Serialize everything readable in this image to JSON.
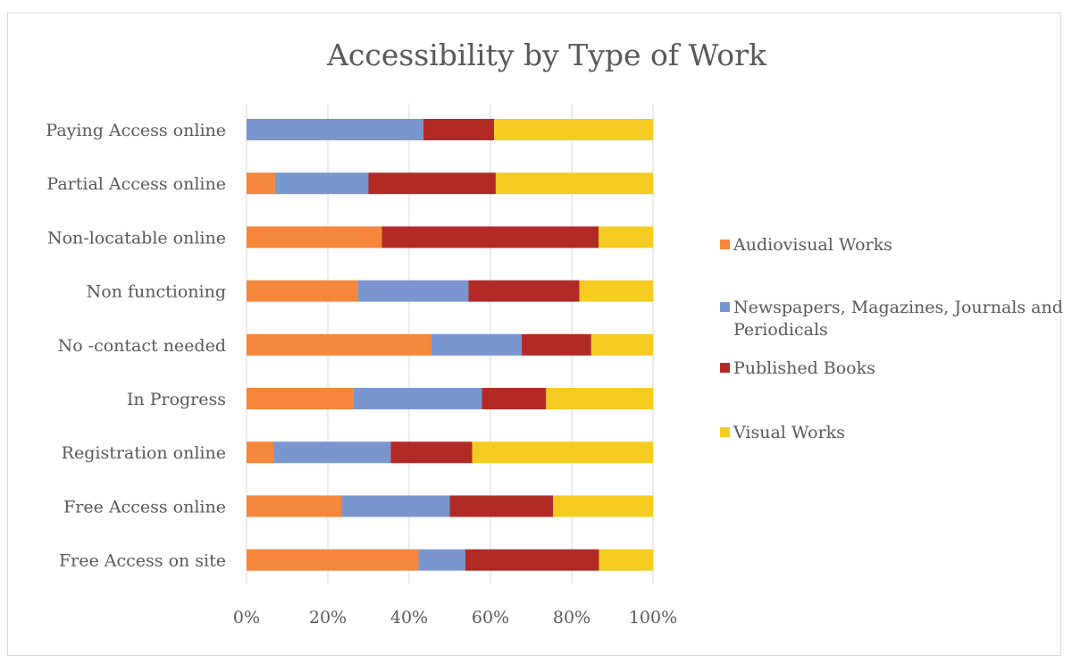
{
  "chart_data": {
    "type": "bar",
    "orientation": "horizontal",
    "stacked": "percent",
    "title": "Accessibility by Type of Work",
    "categories": [
      "Paying Access online",
      "Partial Access online",
      "Non-locatable online",
      "Non functioning",
      "No -contact needed",
      "In Progress",
      "Registration online",
      "Free Access online",
      "Free Access on site"
    ],
    "series": [
      {
        "name": "Audiovisual Works",
        "color": "#f4873b",
        "values": [
          0,
          7,
          33.3,
          27.3,
          45.5,
          26.3,
          6.7,
          23.3,
          42.3
        ]
      },
      {
        "name": "Newspapers, Magazines, Journals and Periodicals",
        "color": "#7a96cf",
        "values": [
          43.5,
          23,
          0,
          27.3,
          22.2,
          31.6,
          28.8,
          26.7,
          11.5
        ]
      },
      {
        "name": "Published Books",
        "color": "#b22a26",
        "values": [
          17.4,
          31.3,
          53.3,
          27.3,
          17.1,
          15.8,
          20,
          25.4,
          32.9
        ]
      },
      {
        "name": "Visual Works",
        "color": "#f5cb22",
        "values": [
          39.1,
          38.7,
          13.4,
          18.1,
          15.2,
          26.3,
          44.5,
          24.6,
          13.3
        ]
      }
    ],
    "xlim": [
      0,
      100
    ],
    "xticks": [
      "0%",
      "20%",
      "40%",
      "60%",
      "80%",
      "100%"
    ],
    "grid": true,
    "legend_position": "right"
  }
}
